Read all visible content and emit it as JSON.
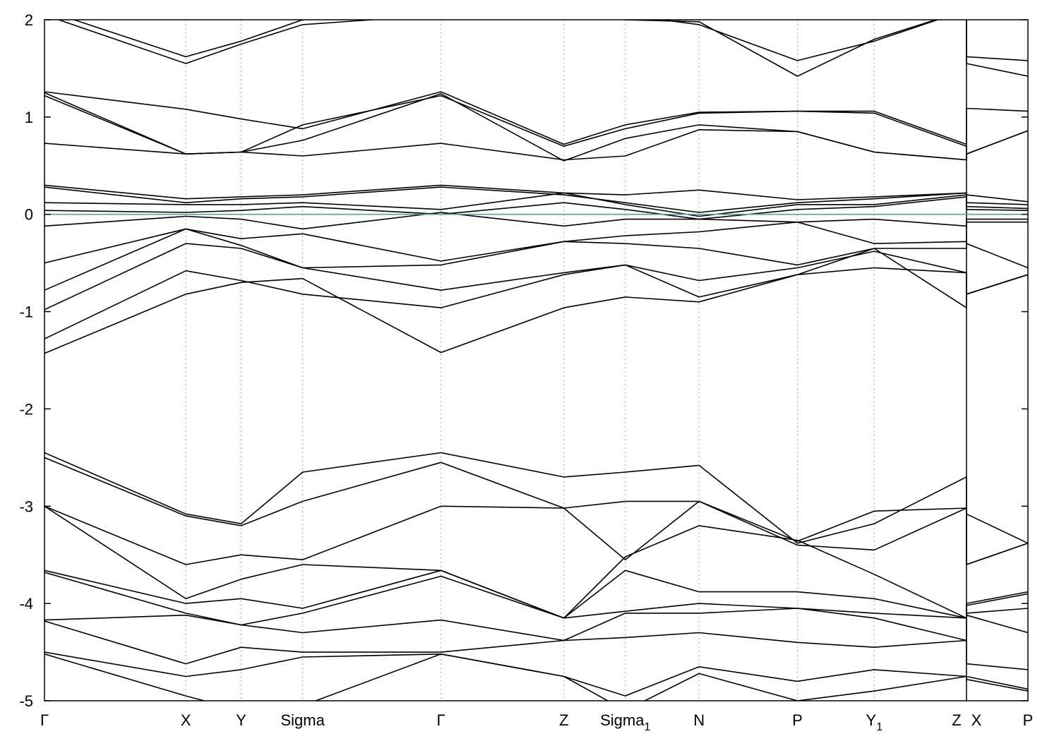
{
  "chart_data": {
    "type": "line",
    "title": "",
    "xlabel": "",
    "ylabel": "",
    "ylim": [
      -5,
      2
    ],
    "yticks": [
      -5,
      -4,
      -3,
      -2,
      -1,
      0,
      1,
      2
    ],
    "ytick_labels": [
      "-5",
      "-4",
      "-3",
      "-2",
      "-1",
      "0",
      "1",
      "2"
    ],
    "grid": "vertical dotted lines at high-symmetry points",
    "xlim": [
      0,
      16
    ],
    "high_symmetry_points": [
      {
        "label": "Γ",
        "sub": "",
        "x": 0
      },
      {
        "label": "X",
        "sub": "",
        "x": 2.3
      },
      {
        "label": "Y",
        "sub": "",
        "x": 3.2
      },
      {
        "label": "Sigma",
        "sub": "",
        "x": 4.2
      },
      {
        "label": "Γ",
        "sub": "",
        "x": 6.45
      },
      {
        "label": "Z",
        "sub": "",
        "x": 8.45
      },
      {
        "label": "Sigma",
        "sub": "1",
        "x": 9.45
      },
      {
        "label": "N",
        "sub": "",
        "x": 10.65
      },
      {
        "label": "P",
        "sub": "",
        "x": 12.25
      },
      {
        "label": "Y",
        "sub": "1",
        "x": 13.5
      },
      {
        "label": "Z",
        "sub": "",
        "x": 15.0
      },
      {
        "label": "X",
        "sub": "",
        "x": 15.0
      },
      {
        "label": "P",
        "sub": "",
        "x": 16.0
      }
    ],
    "fermi_level": {
      "y": 0,
      "color": "#4aa3b8"
    },
    "colors": {
      "bands": "#000000",
      "grid": "#aaaaaa",
      "fermi": "#4aa3b8",
      "frame": "#000000"
    },
    "series": [
      {
        "x": [
          0,
          2.3,
          3.2,
          4.2,
          6.45,
          8.45,
          9.45,
          10.65,
          12.25,
          13.5,
          15.0,
          15.0,
          16.0
        ],
        "values": [
          2.05,
          1.55,
          1.75,
          1.95,
          2.05,
          2.05,
          2.0,
          1.98,
          1.42,
          1.8,
          2.1,
          1.62,
          1.58
        ]
      },
      {
        "x": [
          0,
          2.3,
          3.2,
          4.2,
          6.45,
          8.45,
          9.45,
          10.65,
          12.25,
          13.5,
          15.0,
          15.0,
          16.0
        ],
        "values": [
          2.1,
          1.62,
          1.78,
          2.0,
          2.1,
          2.1,
          2.05,
          1.95,
          1.58,
          1.78,
          2.1,
          1.55,
          1.42
        ]
      },
      {
        "x": [
          0,
          2.3,
          3.2,
          4.2,
          6.45,
          8.45,
          9.45,
          10.65,
          12.25,
          13.5,
          15.0,
          15.0,
          16.0
        ],
        "values": [
          1.26,
          1.08,
          0.98,
          0.88,
          1.26,
          0.72,
          0.92,
          1.05,
          1.06,
          1.06,
          0.72,
          1.09,
          1.06
        ]
      },
      {
        "x": [
          0,
          2.3,
          3.2,
          4.2,
          6.45,
          8.45,
          9.45,
          10.65,
          12.25,
          13.5,
          15.0,
          15.0,
          16.0
        ],
        "values": [
          1.25,
          0.62,
          0.64,
          0.92,
          1.22,
          0.7,
          0.88,
          1.04,
          1.06,
          1.04,
          0.7,
          0.62,
          0.86
        ]
      },
      {
        "x": [
          0,
          2.3,
          3.2,
          4.2,
          6.45,
          8.45,
          9.45,
          10.65,
          12.25,
          13.5,
          15.0,
          15.0,
          16.0
        ],
        "values": [
          1.22,
          0.62,
          0.64,
          0.76,
          1.24,
          0.55,
          0.78,
          0.92,
          0.85,
          0.64,
          0.56,
          0.62,
          0.86
        ]
      },
      {
        "x": [
          0,
          2.3,
          3.2,
          4.2,
          6.45,
          8.45,
          9.45,
          10.65,
          12.25,
          13.5,
          15.0,
          15.0,
          16.0
        ],
        "values": [
          0.73,
          0.62,
          0.64,
          0.6,
          0.73,
          0.56,
          0.6,
          0.87,
          0.85,
          0.64,
          0.56,
          0.62,
          0.86
        ]
      },
      {
        "x": [
          0,
          2.3,
          3.2,
          4.2,
          6.45,
          8.45,
          9.45,
          10.65,
          12.25,
          13.5,
          15.0,
          15.0,
          16.0
        ],
        "values": [
          0.3,
          0.16,
          0.18,
          0.2,
          0.3,
          0.22,
          0.2,
          0.25,
          0.15,
          0.18,
          0.22,
          0.2,
          0.13
        ]
      },
      {
        "x": [
          0,
          2.3,
          3.2,
          4.2,
          6.45,
          8.45,
          9.45,
          10.65,
          12.25,
          13.5,
          15.0,
          15.0,
          16.0
        ],
        "values": [
          0.28,
          0.12,
          0.16,
          0.18,
          0.28,
          0.2,
          0.12,
          0.02,
          0.12,
          0.16,
          0.22,
          0.12,
          0.1
        ]
      },
      {
        "x": [
          0,
          2.3,
          3.2,
          4.2,
          6.45,
          8.45,
          9.45,
          10.65,
          12.25,
          13.5,
          15.0,
          15.0,
          16.0
        ],
        "values": [
          0.12,
          0.1,
          0.1,
          0.12,
          0.05,
          0.22,
          0.1,
          -0.02,
          0.1,
          0.1,
          0.2,
          0.08,
          0.06
        ]
      },
      {
        "x": [
          0,
          2.3,
          3.2,
          4.2,
          6.45,
          8.45,
          9.45,
          10.65,
          12.25,
          13.5,
          15.0,
          15.0,
          16.0
        ],
        "values": [
          0.04,
          0.02,
          0.04,
          0.08,
          0.0,
          0.12,
          0.05,
          -0.05,
          0.05,
          0.08,
          0.18,
          0.05,
          0.04
        ]
      },
      {
        "x": [
          0,
          2.3,
          3.2,
          4.2,
          6.45,
          8.45,
          9.45,
          10.65,
          12.25,
          13.5,
          15.0,
          15.0,
          16.0
        ],
        "values": [
          -0.12,
          -0.02,
          -0.05,
          -0.15,
          0.02,
          -0.12,
          -0.05,
          -0.05,
          -0.08,
          -0.05,
          -0.12,
          -0.05,
          -0.05
        ]
      },
      {
        "x": [
          0,
          2.3,
          3.2,
          4.2,
          6.45,
          8.45,
          9.45,
          10.65,
          12.25,
          13.5,
          15.0,
          15.0,
          16.0
        ],
        "values": [
          -0.5,
          -0.15,
          -0.25,
          -0.2,
          -0.48,
          -0.28,
          -0.22,
          -0.18,
          -0.08,
          -0.3,
          -0.28,
          -0.3,
          -0.55
        ]
      },
      {
        "x": [
          0,
          2.3,
          3.2,
          4.2,
          6.45,
          8.45,
          9.45,
          10.65,
          12.25,
          13.5,
          15.0,
          15.0,
          16.0
        ],
        "values": [
          -0.78,
          -0.15,
          -0.32,
          -0.55,
          -0.52,
          -0.28,
          -0.3,
          -0.35,
          -0.52,
          -0.35,
          -0.35,
          -0.08,
          -0.08
        ]
      },
      {
        "x": [
          0,
          2.3,
          3.2,
          4.2,
          6.45,
          8.45,
          9.45,
          10.65,
          12.25,
          13.5,
          15.0,
          15.0,
          16.0
        ],
        "values": [
          -0.98,
          -0.3,
          -0.35,
          -0.55,
          -0.78,
          -0.6,
          -0.52,
          -0.68,
          -0.55,
          -0.38,
          -0.6,
          -0.82,
          -0.62
        ]
      },
      {
        "x": [
          0,
          2.3,
          3.2,
          4.2,
          6.45,
          8.45,
          9.45,
          10.65,
          12.25,
          13.5,
          15.0,
          15.0,
          16.0
        ],
        "values": [
          -1.28,
          -0.58,
          -0.68,
          -0.82,
          -0.96,
          -0.62,
          -0.52,
          -0.85,
          -0.62,
          -0.35,
          -0.96,
          -0.82,
          -0.62
        ]
      },
      {
        "x": [
          0,
          2.3,
          3.2,
          4.2,
          6.45,
          8.45,
          9.45,
          10.65,
          12.25,
          13.5,
          15.0,
          15.0,
          16.0
        ],
        "values": [
          -1.43,
          -0.82,
          -0.7,
          -0.66,
          -1.42,
          -0.96,
          -0.85,
          -0.9,
          -0.62,
          -0.55,
          -0.6,
          -0.82,
          -0.62
        ]
      },
      {
        "x": [
          0,
          2.3,
          3.2,
          4.2,
          6.45,
          8.45,
          9.45,
          10.65,
          12.25,
          13.5,
          15.0,
          15.0,
          16.0
        ],
        "values": [
          -2.45,
          -3.08,
          -3.18,
          -2.65,
          -2.45,
          -2.7,
          -2.65,
          -2.58,
          -3.38,
          -3.18,
          -2.7,
          -3.08,
          -3.38
        ]
      },
      {
        "x": [
          0,
          2.3,
          3.2,
          4.2,
          6.45,
          8.45,
          9.45,
          10.65,
          12.25,
          13.5,
          15.0,
          15.0,
          16.0
        ],
        "values": [
          -2.5,
          -3.1,
          -3.2,
          -2.95,
          -2.55,
          -3.02,
          -2.95,
          -2.95,
          -3.36,
          -3.05,
          -3.02,
          -3.6,
          -3.38
        ]
      },
      {
        "x": [
          0,
          2.3,
          3.2,
          4.2,
          6.45,
          8.45,
          9.45,
          10.65,
          12.25,
          13.5,
          15.0,
          15.0,
          16.0
        ],
        "values": [
          -3.0,
          -3.6,
          -3.5,
          -3.55,
          -3.0,
          -3.02,
          -3.55,
          -2.95,
          -3.4,
          -3.45,
          -3.02,
          -3.6,
          -3.38
        ]
      },
      {
        "x": [
          0,
          2.3,
          3.2,
          4.2,
          6.45,
          8.45,
          9.45,
          10.65,
          12.25,
          13.5,
          15.0,
          15.0,
          16.0
        ],
        "values": [
          -3.0,
          -3.95,
          -3.75,
          -3.6,
          -3.66,
          -4.15,
          -3.52,
          -3.2,
          -3.35,
          -3.7,
          -4.15,
          -4.0,
          -3.88
        ]
      },
      {
        "x": [
          0,
          2.3,
          3.2,
          4.2,
          6.45,
          8.45,
          9.45,
          10.65,
          12.25,
          13.5,
          15.0,
          15.0,
          16.0
        ],
        "values": [
          -3.66,
          -4.0,
          -3.95,
          -4.05,
          -3.66,
          -4.15,
          -3.66,
          -3.88,
          -3.88,
          -3.95,
          -4.15,
          -4.02,
          -3.9
        ]
      },
      {
        "x": [
          0,
          2.3,
          3.2,
          4.2,
          6.45,
          8.45,
          9.45,
          10.65,
          12.25,
          13.5,
          15.0,
          15.0,
          16.0
        ],
        "values": [
          -3.68,
          -4.1,
          -4.22,
          -4.1,
          -3.72,
          -4.15,
          -4.08,
          -4.0,
          -4.05,
          -4.1,
          -4.15,
          -4.1,
          -4.05
        ]
      },
      {
        "x": [
          0,
          2.3,
          3.2,
          4.2,
          6.45,
          8.45,
          9.45,
          10.65,
          12.25,
          13.5,
          15.0,
          15.0,
          16.0
        ],
        "values": [
          -4.17,
          -4.12,
          -4.22,
          -4.3,
          -4.17,
          -4.38,
          -4.1,
          -4.1,
          -4.05,
          -4.15,
          -4.38,
          -4.12,
          -4.3
        ]
      },
      {
        "x": [
          0,
          2.3,
          3.2,
          4.2,
          6.45,
          8.45,
          9.45,
          10.65,
          12.25,
          13.5,
          15.0,
          15.0,
          16.0
        ],
        "values": [
          -4.18,
          -4.62,
          -4.45,
          -4.5,
          -4.5,
          -4.38,
          -4.35,
          -4.3,
          -4.4,
          -4.45,
          -4.38,
          -4.62,
          -4.68
        ]
      },
      {
        "x": [
          0,
          2.3,
          3.2,
          4.2,
          6.45,
          8.45,
          9.45,
          10.65,
          12.25,
          13.5,
          15.0,
          15.0,
          16.0
        ],
        "values": [
          -4.5,
          -4.75,
          -4.68,
          -4.55,
          -4.52,
          -4.75,
          -4.95,
          -4.65,
          -4.8,
          -4.68,
          -4.75,
          -4.75,
          -4.88
        ]
      },
      {
        "x": [
          0,
          2.3,
          3.2,
          4.2,
          6.45,
          8.45,
          9.45,
          10.65,
          12.25,
          13.5,
          15.0,
          15.0,
          16.0
        ],
        "values": [
          -4.52,
          -4.95,
          -5.1,
          -5.05,
          -4.52,
          -4.75,
          -5.1,
          -4.72,
          -5.0,
          -4.9,
          -4.75,
          -4.78,
          -4.9
        ]
      }
    ]
  }
}
